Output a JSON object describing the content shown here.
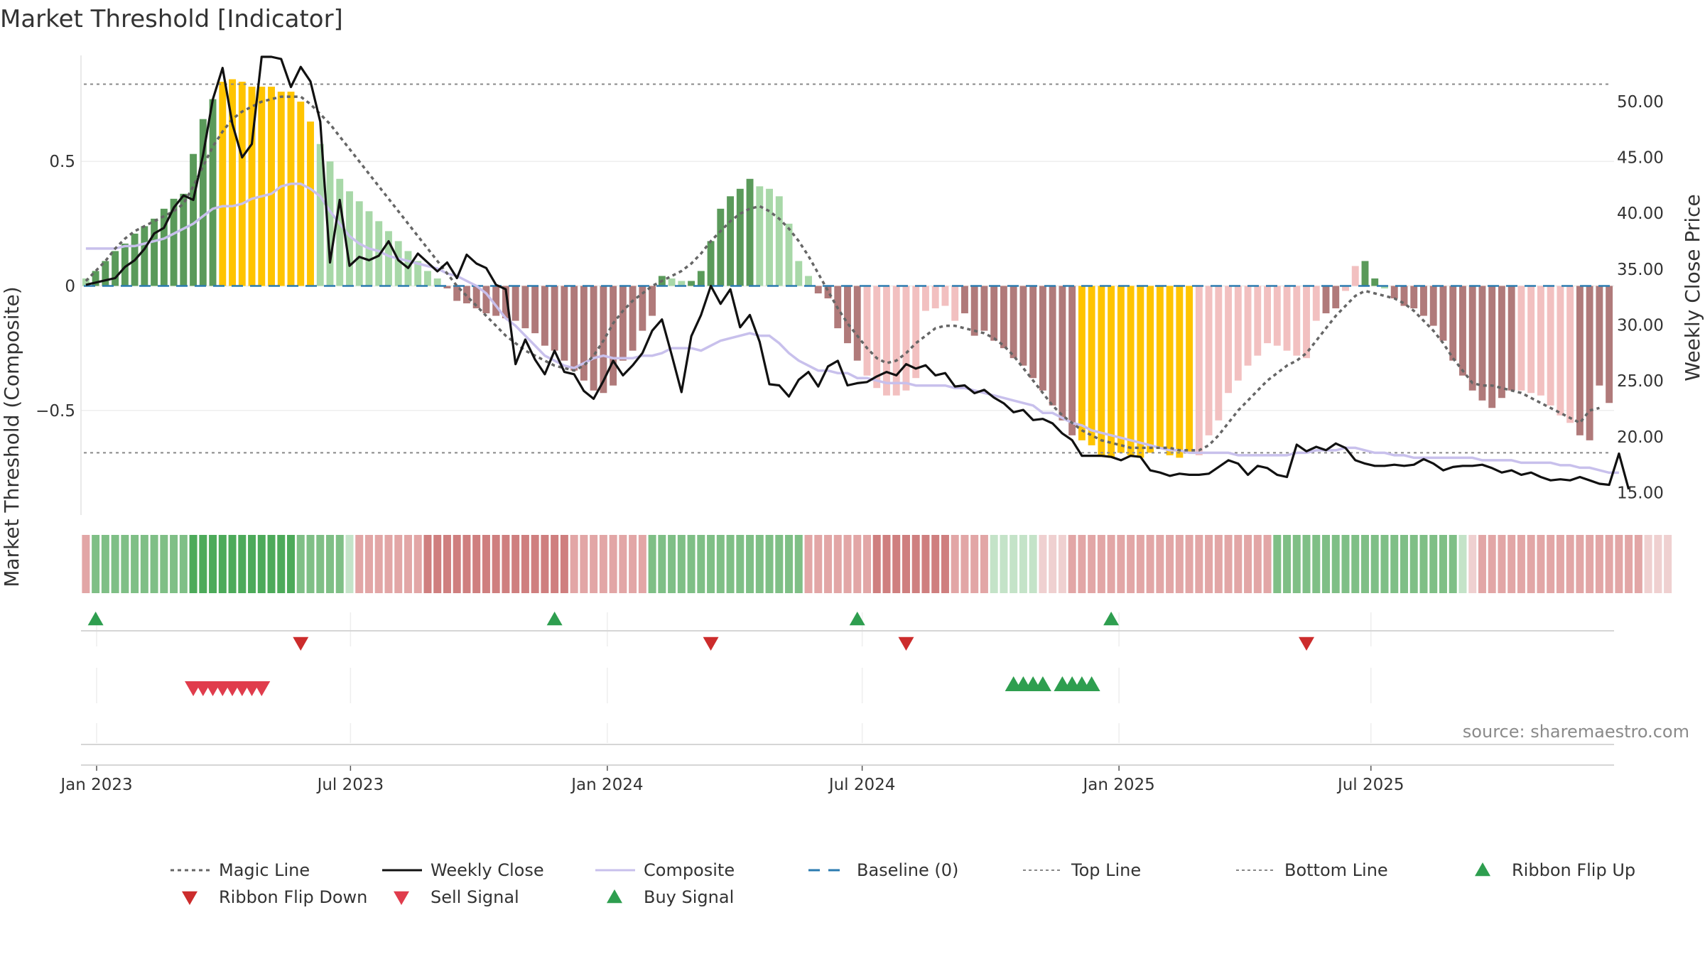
{
  "chart_data": {
    "type": "bar",
    "title": "Market Threshold [Indicator]",
    "ylabel_left": "Market Threshold (Composite)",
    "ylabel_right": "Weekly Close Price",
    "source": "source: sharemaestro.com",
    "ylim_left": [
      -0.92,
      0.92
    ],
    "ylim_right": [
      13.0,
      54.0
    ],
    "yticks_left": [
      {
        "value": 0.5,
        "label": "0.5"
      },
      {
        "value": 0,
        "label": "0"
      },
      {
        "value": -0.5,
        "label": "−0.5"
      }
    ],
    "yticks_right": [
      {
        "value": 50,
        "label": "50.00"
      },
      {
        "value": 45,
        "label": "45.00"
      },
      {
        "value": 40,
        "label": "40.00"
      },
      {
        "value": 35,
        "label": "35.00"
      },
      {
        "value": 30,
        "label": "30.00"
      },
      {
        "value": 25,
        "label": "25.00"
      },
      {
        "value": 20,
        "label": "20.00"
      },
      {
        "value": 15,
        "label": "15.00"
      }
    ],
    "xticks": [
      {
        "week": 1.6,
        "label": "Jan 2023"
      },
      {
        "week": 27.6,
        "label": "Jul 2023"
      },
      {
        "week": 53.9,
        "label": "Jan 2024"
      },
      {
        "week": 80.0,
        "label": "Jul 2024"
      },
      {
        "week": 106.3,
        "label": "Jan 2025"
      },
      {
        "week": 132.1,
        "label": "Jul 2025"
      }
    ],
    "top_line": 0.81,
    "bottom_line": -0.67,
    "colors": {
      "strong_pos": "#5a9a5a",
      "weak_pos": "#a8d8a8",
      "extreme": "#ffc400",
      "strong_neg": "#b07a7a",
      "weak_neg": "#f2c0c0",
      "weekly_close": "#111111",
      "composite": "#c8c0ec",
      "magic_line": "#666666",
      "baseline": "#2b7bb0",
      "threshold": "#888888",
      "buy": "#2e9e4f",
      "sell": "#e03c4c",
      "flip_down": "#cc2c2c",
      "flip_up": "#2e9e4f"
    },
    "composite": [
      0.03,
      0.06,
      0.1,
      0.14,
      0.17,
      0.21,
      0.24,
      0.27,
      0.31,
      0.35,
      0.37,
      0.53,
      0.67,
      0.75,
      0.82,
      0.83,
      0.82,
      0.8,
      0.8,
      0.8,
      0.78,
      0.78,
      0.74,
      0.66,
      0.57,
      0.5,
      0.43,
      0.38,
      0.34,
      0.3,
      0.26,
      0.22,
      0.18,
      0.14,
      0.1,
      0.06,
      0.03,
      -0.01,
      -0.06,
      -0.07,
      -0.09,
      -0.11,
      -0.12,
      -0.13,
      -0.14,
      -0.17,
      -0.19,
      -0.24,
      -0.26,
      -0.3,
      -0.34,
      -0.38,
      -0.42,
      -0.43,
      -0.4,
      -0.3,
      -0.26,
      -0.18,
      -0.12,
      0.04,
      0.03,
      0.02,
      0.02,
      0.06,
      0.18,
      0.31,
      0.36,
      0.39,
      0.43,
      0.4,
      0.39,
      0.36,
      0.25,
      0.1,
      0.04,
      -0.03,
      -0.05,
      -0.17,
      -0.23,
      -0.3,
      -0.36,
      -0.41,
      -0.44,
      -0.44,
      -0.42,
      -0.37,
      -0.1,
      -0.09,
      -0.08,
      -0.14,
      -0.11,
      -0.2,
      -0.18,
      -0.22,
      -0.25,
      -0.29,
      -0.32,
      -0.37,
      -0.42,
      -0.48,
      -0.54,
      -0.6,
      -0.62,
      -0.64,
      -0.68,
      -0.69,
      -0.67,
      -0.68,
      -0.69,
      -0.67,
      -0.65,
      -0.68,
      -0.69,
      -0.67,
      -0.68,
      -0.6,
      -0.54,
      -0.43,
      -0.38,
      -0.32,
      -0.28,
      -0.23,
      -0.24,
      -0.26,
      -0.28,
      -0.29,
      -0.14,
      -0.11,
      -0.09,
      -0.02,
      0.08,
      0.1,
      0.03,
      -0.01,
      -0.05,
      -0.08,
      -0.09,
      -0.12,
      -0.16,
      -0.22,
      -0.3,
      -0.36,
      -0.42,
      -0.46,
      -0.49,
      -0.45,
      -0.42,
      -0.42,
      -0.43,
      -0.44,
      -0.48,
      -0.52,
      -0.55,
      -0.6,
      -0.62,
      -0.4,
      -0.47
    ],
    "bar_classes": [
      "wp",
      "sp",
      "sp",
      "sp",
      "sp",
      "sp",
      "sp",
      "sp",
      "sp",
      "sp",
      "sp",
      "sp",
      "sp",
      "sp",
      "ex",
      "ex",
      "ex",
      "ex",
      "ex",
      "ex",
      "ex",
      "ex",
      "ex",
      "ex",
      "wp",
      "wp",
      "wp",
      "wp",
      "wp",
      "wp",
      "wp",
      "wp",
      "wp",
      "wp",
      "wp",
      "wp",
      "wp",
      "sn",
      "sn",
      "sn",
      "sn",
      "sn",
      "sn",
      "sn",
      "sn",
      "sn",
      "sn",
      "sn",
      "sn",
      "sn",
      "sn",
      "sn",
      "sn",
      "sn",
      "sn",
      "sn",
      "sn",
      "sn",
      "sn",
      "sp",
      "wp",
      "wp",
      "sp",
      "sp",
      "sp",
      "sp",
      "sp",
      "sp",
      "sp",
      "wp",
      "wp",
      "wp",
      "wp",
      "wp",
      "wp",
      "sn",
      "sn",
      "sn",
      "sn",
      "sn",
      "wn",
      "wn",
      "wn",
      "wn",
      "wn",
      "wn",
      "wn",
      "wn",
      "wn",
      "wn",
      "sn",
      "sn",
      "sn",
      "sn",
      "sn",
      "sn",
      "sn",
      "sn",
      "sn",
      "sn",
      "sn",
      "sn",
      "ex",
      "ex",
      "ex",
      "ex",
      "ex",
      "ex",
      "ex",
      "ex",
      "ex",
      "ex",
      "ex",
      "ex",
      "wn",
      "wn",
      "wn",
      "wn",
      "wn",
      "wn",
      "wn",
      "wn",
      "wn",
      "wn",
      "wn",
      "wn",
      "wn",
      "sn",
      "sn",
      "wn",
      "wn",
      "sp",
      "sp",
      "wp",
      "sn",
      "sn",
      "sn",
      "sn",
      "sn",
      "sn",
      "sn",
      "sn",
      "sn",
      "sn",
      "sn",
      "sn",
      "sn",
      "wn",
      "wn",
      "wn",
      "wn",
      "wn",
      "wn",
      "sn",
      "sn",
      "sn",
      "sn",
      "sn",
      "wn",
      "sn"
    ],
    "magic_line": [
      0.02,
      0.06,
      0.1,
      0.15,
      0.19,
      0.22,
      0.24,
      0.26,
      0.28,
      0.3,
      0.33,
      0.4,
      0.48,
      0.56,
      0.62,
      0.67,
      0.7,
      0.72,
      0.74,
      0.75,
      0.76,
      0.76,
      0.76,
      0.73,
      0.69,
      0.65,
      0.6,
      0.55,
      0.5,
      0.45,
      0.4,
      0.35,
      0.3,
      0.25,
      0.2,
      0.15,
      0.1,
      0.05,
      0.0,
      -0.04,
      -0.08,
      -0.12,
      -0.16,
      -0.2,
      -0.23,
      -0.26,
      -0.28,
      -0.3,
      -0.32,
      -0.33,
      -0.34,
      -0.32,
      -0.28,
      -0.22,
      -0.15,
      -0.1,
      -0.06,
      -0.03,
      0.0,
      0.02,
      0.04,
      0.06,
      0.09,
      0.13,
      0.18,
      0.22,
      0.26,
      0.29,
      0.31,
      0.32,
      0.3,
      0.27,
      0.23,
      0.18,
      0.12,
      0.05,
      -0.02,
      -0.09,
      -0.15,
      -0.2,
      -0.25,
      -0.29,
      -0.31,
      -0.3,
      -0.27,
      -0.23,
      -0.2,
      -0.17,
      -0.16,
      -0.16,
      -0.17,
      -0.18,
      -0.19,
      -0.21,
      -0.24,
      -0.28,
      -0.33,
      -0.38,
      -0.43,
      -0.48,
      -0.52,
      -0.55,
      -0.58,
      -0.6,
      -0.62,
      -0.63,
      -0.64,
      -0.65,
      -0.65,
      -0.65,
      -0.65,
      -0.65,
      -0.66,
      -0.66,
      -0.66,
      -0.64,
      -0.6,
      -0.55,
      -0.5,
      -0.46,
      -0.42,
      -0.38,
      -0.35,
      -0.32,
      -0.3,
      -0.27,
      -0.22,
      -0.17,
      -0.12,
      -0.08,
      -0.04,
      -0.02,
      -0.03,
      -0.04,
      -0.05,
      -0.07,
      -0.1,
      -0.14,
      -0.18,
      -0.23,
      -0.29,
      -0.34,
      -0.39,
      -0.4,
      -0.4,
      -0.41,
      -0.42,
      -0.43,
      -0.45,
      -0.47,
      -0.49,
      -0.51,
      -0.53,
      -0.55,
      -0.5,
      -0.49
    ],
    "composite_line": [
      0.15,
      0.15,
      0.15,
      0.15,
      0.16,
      0.16,
      0.17,
      0.18,
      0.19,
      0.21,
      0.23,
      0.25,
      0.28,
      0.31,
      0.32,
      0.32,
      0.33,
      0.35,
      0.36,
      0.37,
      0.4,
      0.41,
      0.41,
      0.39,
      0.36,
      0.3,
      0.25,
      0.2,
      0.17,
      0.15,
      0.14,
      0.12,
      0.11,
      0.1,
      0.09,
      0.08,
      0.07,
      0.05,
      0.04,
      0.02,
      0.0,
      -0.03,
      -0.08,
      -0.13,
      -0.16,
      -0.2,
      -0.24,
      -0.28,
      -0.3,
      -0.32,
      -0.33,
      -0.31,
      -0.29,
      -0.28,
      -0.29,
      -0.29,
      -0.29,
      -0.28,
      -0.28,
      -0.27,
      -0.25,
      -0.25,
      -0.25,
      -0.26,
      -0.24,
      -0.22,
      -0.21,
      -0.2,
      -0.19,
      -0.2,
      -0.2,
      -0.23,
      -0.27,
      -0.3,
      -0.32,
      -0.34,
      -0.34,
      -0.35,
      -0.35,
      -0.37,
      -0.37,
      -0.38,
      -0.39,
      -0.39,
      -0.39,
      -0.4,
      -0.4,
      -0.4,
      -0.4,
      -0.41,
      -0.41,
      -0.42,
      -0.43,
      -0.44,
      -0.45,
      -0.46,
      -0.47,
      -0.48,
      -0.51,
      -0.51,
      -0.53,
      -0.55,
      -0.56,
      -0.58,
      -0.59,
      -0.6,
      -0.61,
      -0.62,
      -0.63,
      -0.64,
      -0.65,
      -0.66,
      -0.66,
      -0.67,
      -0.67,
      -0.67,
      -0.67,
      -0.67,
      -0.68,
      -0.68,
      -0.68,
      -0.68,
      -0.68,
      -0.68,
      -0.67,
      -0.67,
      -0.66,
      -0.66,
      -0.66,
      -0.65,
      -0.65,
      -0.66,
      -0.67,
      -0.67,
      -0.68,
      -0.68,
      -0.69,
      -0.69,
      -0.69,
      -0.69,
      -0.69,
      -0.69,
      -0.69,
      -0.7,
      -0.7,
      -0.7,
      -0.7,
      -0.71,
      -0.71,
      -0.71,
      -0.71,
      -0.72,
      -0.72,
      -0.73,
      -0.73,
      -0.74,
      -0.75,
      -0.75
    ],
    "weekly_close": [
      33.6,
      33.8,
      34.0,
      34.2,
      35.2,
      35.8,
      36.8,
      38.2,
      38.7,
      40.5,
      41.6,
      41.2,
      45.2,
      50.2,
      53.0,
      48.0,
      45.0,
      46.2,
      54.0,
      54.0,
      53.8,
      51.3,
      53.1,
      51.8,
      48.2,
      35.6,
      41.2,
      35.3,
      36.1,
      35.8,
      36.2,
      37.5,
      35.8,
      35.1,
      36.4,
      35.6,
      34.8,
      35.6,
      34.2,
      36.3,
      35.5,
      35.1,
      33.6,
      33.2,
      26.5,
      28.7,
      26.9,
      25.6,
      27.7,
      25.8,
      25.6,
      24.1,
      23.4,
      25.0,
      26.8,
      25.5,
      26.4,
      27.5,
      29.5,
      30.5,
      27.3,
      24.0,
      29.0,
      30.9,
      33.5,
      31.9,
      33.2,
      29.8,
      30.9,
      28.5,
      24.7,
      24.6,
      23.6,
      25.1,
      25.8,
      24.5,
      26.3,
      26.8,
      24.6,
      24.8,
      24.9,
      25.4,
      25.8,
      25.5,
      26.5,
      26.1,
      26.4,
      25.5,
      25.7,
      24.5,
      24.6,
      23.9,
      24.2,
      23.5,
      23.0,
      22.2,
      22.4,
      21.5,
      21.6,
      21.2,
      20.3,
      19.7,
      18.3,
      18.3,
      18.3,
      18.2,
      17.9,
      18.3,
      18.2,
      17.0,
      16.8,
      16.5,
      16.7,
      16.6,
      16.6,
      16.7,
      17.3,
      17.9,
      17.6,
      16.6,
      17.4,
      17.2,
      16.6,
      16.4,
      19.3,
      18.7,
      19.1,
      18.8,
      19.4,
      19.0,
      17.9,
      17.6,
      17.4,
      17.4,
      17.5,
      17.4,
      17.5,
      18.0,
      17.6,
      17.0,
      17.3,
      17.4,
      17.4,
      17.5,
      17.2,
      16.8,
      17.0,
      16.6,
      16.8,
      16.4,
      16.1,
      16.2,
      16.1,
      16.4,
      16.1,
      15.8,
      15.7,
      18.5,
      15.3
    ],
    "ribbon": [
      "wn",
      "wp",
      "wp",
      "wp",
      "wp",
      "wp",
      "wp",
      "wp",
      "wp",
      "wp",
      "wp",
      "sp",
      "sp",
      "sp",
      "sp",
      "sp",
      "sp",
      "sp",
      "sp",
      "sp",
      "sp",
      "sp",
      "wp",
      "wp",
      "wp",
      "wp",
      "wp",
      "xp",
      "wn",
      "wn",
      "wn",
      "wn",
      "wn",
      "wn",
      "wn",
      "sn",
      "sn",
      "sn",
      "sn",
      "sn",
      "sn",
      "sn",
      "sn",
      "sn",
      "sn",
      "sn",
      "sn",
      "sn",
      "sn",
      "sn",
      "wn",
      "wn",
      "wn",
      "wn",
      "wn",
      "wn",
      "wn",
      "wn",
      "wp",
      "wp",
      "wp",
      "wp",
      "wp",
      "wp",
      "wp",
      "wp",
      "wp",
      "wp",
      "wp",
      "wp",
      "wp",
      "wp",
      "wp",
      "wp",
      "wn",
      "wn",
      "wn",
      "wn",
      "wn",
      "wn",
      "wn",
      "sn",
      "sn",
      "sn",
      "sn",
      "sn",
      "sn",
      "sn",
      "sn",
      "wn",
      "wn",
      "wn",
      "wn",
      "xp",
      "xp",
      "xp",
      "xp",
      "xp",
      "xn",
      "xn",
      "xn",
      "wn",
      "wn",
      "wn",
      "wn",
      "wn",
      "wn",
      "wn",
      "wn",
      "wn",
      "wn",
      "wn",
      "wn",
      "wn",
      "wn",
      "wn",
      "wn",
      "wn",
      "wn",
      "wn",
      "wn",
      "wn",
      "wp",
      "wp",
      "wp",
      "wp",
      "wp",
      "wp",
      "wp",
      "wp",
      "wp",
      "wp",
      "wp",
      "wp",
      "wp",
      "wp",
      "wp",
      "wp",
      "wp",
      "wp",
      "wp",
      "xp",
      "xn",
      "wn",
      "wn",
      "wn",
      "wn",
      "wn",
      "wn",
      "wn",
      "wn",
      "wn",
      "wn",
      "wn",
      "wn",
      "wn",
      "wn",
      "wn",
      "wn",
      "wn",
      "xn",
      "xn",
      "xn"
    ],
    "ribbon_flip_up": [
      1,
      48,
      79,
      105
    ],
    "ribbon_flip_down": [
      22,
      64,
      84,
      125
    ],
    "sell_signals": [
      11,
      12,
      13,
      14,
      15,
      16,
      17,
      18
    ],
    "buy_signals": [
      95,
      96,
      97,
      98,
      100,
      101,
      102,
      103
    ],
    "legend": [
      {
        "label": "Magic Line",
        "kind": "dotted",
        "color": "#666666"
      },
      {
        "label": "Weekly Close",
        "kind": "line",
        "color": "#111111"
      },
      {
        "label": "Composite",
        "kind": "line",
        "color": "#c8c0ec"
      },
      {
        "label": "Baseline (0)",
        "kind": "dashed",
        "color": "#2b7bb0"
      },
      {
        "label": "Top Line",
        "kind": "dotted-thin",
        "color": "#888888"
      },
      {
        "label": "Bottom Line",
        "kind": "dotted-thin",
        "color": "#888888"
      },
      {
        "label": "Ribbon Flip Up",
        "kind": "tri-up",
        "color": "#2e9e4f"
      },
      {
        "label": "Ribbon Flip Down",
        "kind": "tri-down",
        "color": "#cc2c2c"
      },
      {
        "label": "Sell Signal",
        "kind": "tri-down",
        "color": "#e03c4c"
      },
      {
        "label": "Buy Signal",
        "kind": "tri-up",
        "color": "#2e9e4f"
      }
    ]
  }
}
